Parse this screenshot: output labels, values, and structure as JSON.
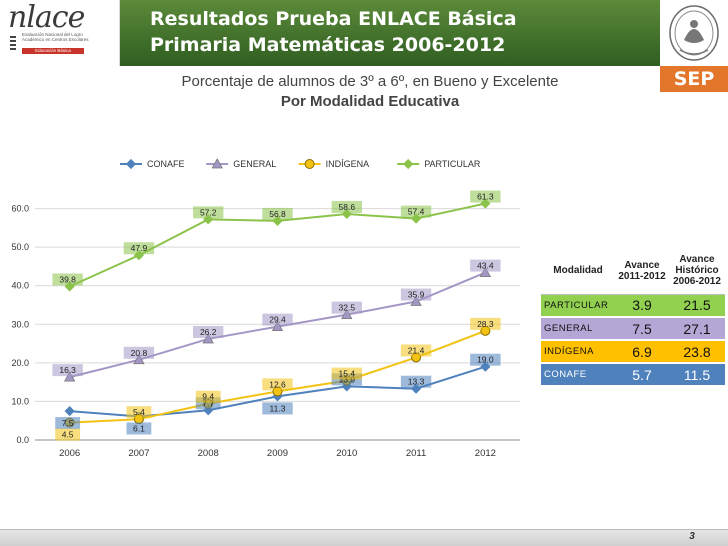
{
  "header": {
    "logo_text": "nlace",
    "logo_tagline": "Evaluación Nacional del Logro Académico en Centros Escolares",
    "logo_level": "Educación Básica",
    "title_line1": "Resultados Prueba ENLACE Básica",
    "title_line2": "Primaria Matemáticas 2006-2012",
    "badge": "SEP"
  },
  "subtitle": {
    "line1": "Porcentaje de alumnos de 3º a 6º, en Bueno y Excelente",
    "line2": "Por Modalidad Educativa"
  },
  "colors": {
    "conafe": "#4f81bd",
    "general": "#a497c6",
    "indigena": "#f2c314",
    "particular": "#8bc34a",
    "row_particular": "#92d050",
    "row_general": "#b4a7d6",
    "row_indigena": "#ffc000",
    "row_conafe": "#4f81bd"
  },
  "chart_data": {
    "type": "line",
    "categories": [
      "2006",
      "2007",
      "2008",
      "2009",
      "2010",
      "2011",
      "2012"
    ],
    "y_ticks": [
      "0.0",
      "10.0",
      "20.0",
      "30.0",
      "40.0",
      "50.0",
      "60.0"
    ],
    "ylim": [
      0,
      70
    ],
    "grid": true,
    "legend_position": "top",
    "series": [
      {
        "name": "CONAFE",
        "values": [
          7.5,
          6.1,
          7.7,
          11.3,
          13.9,
          13.3,
          19.0
        ],
        "labels": [
          "7.5",
          "6.1",
          "7.7",
          "11.3",
          "13.9",
          "13.3",
          "19.0"
        ],
        "marker": "diamond"
      },
      {
        "name": "GENERAL",
        "values": [
          16.3,
          20.8,
          26.2,
          29.4,
          32.5,
          35.9,
          43.4
        ],
        "labels": [
          "16.3",
          "20.8",
          "26.2",
          "29.4",
          "32.5",
          "35.9",
          "43.4"
        ],
        "marker": "triangle"
      },
      {
        "name": "INDÍGENA",
        "values": [
          4.5,
          5.4,
          9.4,
          12.6,
          15.4,
          21.4,
          28.3
        ],
        "labels": [
          "4.5",
          "5.4",
          "9.4",
          "12.6",
          "15.4",
          "21.4",
          "28.3"
        ],
        "marker": "circle"
      },
      {
        "name": "PARTICULAR",
        "values": [
          39.8,
          47.9,
          57.2,
          56.8,
          58.6,
          57.4,
          61.3
        ],
        "labels": [
          "39.8",
          "47.9",
          "57.2",
          "56.8",
          "58.6",
          "57.4",
          "61.3"
        ],
        "marker": "diamond"
      }
    ]
  },
  "table": {
    "headers": {
      "modalidad": "Modalidad",
      "avance": "Avance 2011-2012",
      "historico": "Avance Histórico 2006-2012"
    },
    "rows": [
      {
        "label": "PARTICULAR",
        "avance": "3.9",
        "historico": "21.5"
      },
      {
        "label": "GENERAL",
        "avance": "7.5",
        "historico": "27.1"
      },
      {
        "label": "INDÍGENA",
        "avance": "6.9",
        "historico": "23.8"
      },
      {
        "label": "CONAFE",
        "avance": "5.7",
        "historico": "11.5"
      }
    ]
  },
  "footer": {
    "page_number": "3"
  }
}
